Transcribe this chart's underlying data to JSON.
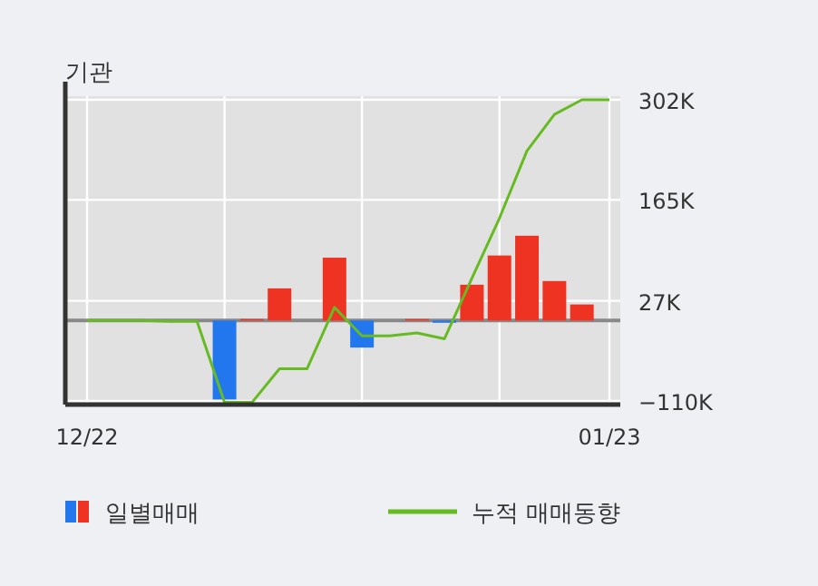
{
  "chart_data": {
    "type": "bar",
    "title": "기관",
    "categories": [
      "12/22",
      null,
      null,
      null,
      null,
      null,
      null,
      null,
      null,
      null,
      null,
      null,
      null,
      null,
      null,
      null,
      null,
      null,
      null,
      "01/23"
    ],
    "series": [
      {
        "name": "일별매매",
        "values": [
          0,
          0,
          0,
          null,
          0,
          -108,
          2,
          44,
          0,
          86,
          -37,
          0,
          2,
          -3,
          49,
          89,
          116,
          54,
          22,
          0
        ],
        "colors": [
          "#ee3322",
          "#ee3322",
          "#ee3322",
          "#2277ee",
          "#ee3322",
          "#2277ee",
          "#ee3322",
          "#ee3322",
          "#ee3322",
          "#ee3322",
          "#2277ee",
          "#ee3322",
          "#ee3322",
          "#2277ee",
          "#ee3322",
          "#ee3322",
          "#ee3322",
          "#ee3322",
          "#ee3322",
          "#ee3322"
        ]
      },
      {
        "name": "누적 매매동향",
        "type": "line",
        "color": "#66bb22",
        "values": [
          0,
          0,
          0,
          -1,
          -1,
          -112,
          -112,
          -66,
          -66,
          18,
          -21,
          -21,
          -17,
          -25,
          58,
          140,
          232,
          282,
          302,
          302
        ]
      }
    ],
    "ylim": [
      -115,
      307
    ],
    "yticks": [
      {
        "value": 302,
        "label": "302K"
      },
      {
        "value": 165,
        "label": "165K"
      },
      {
        "value": 27,
        "label": "27K"
      },
      {
        "value": -110,
        "label": "−110K"
      }
    ],
    "ref_lines": [
      {
        "axis": "y",
        "value": 0,
        "color": "#888888"
      }
    ],
    "grid": true,
    "legend": "bottom"
  }
}
